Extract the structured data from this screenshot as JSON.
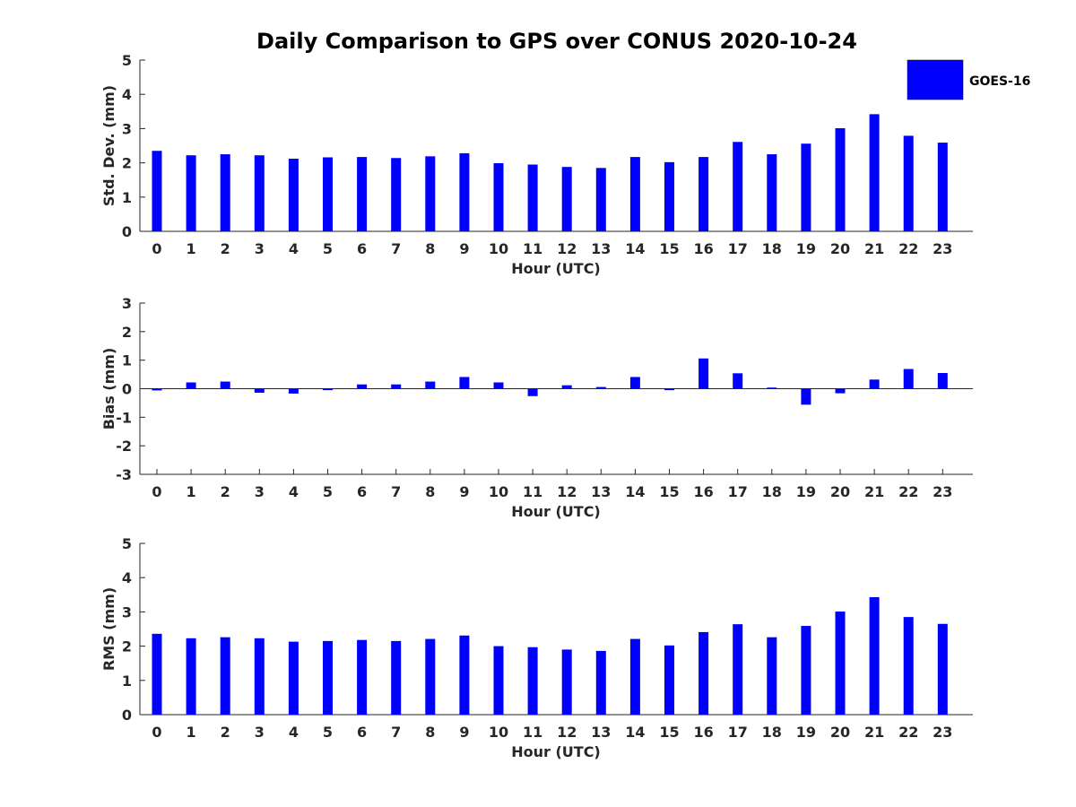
{
  "title": "Daily Comparison to GPS over CONUS 2020-10-24",
  "legend": {
    "label": "GOES-16",
    "color": "#0000ff"
  },
  "chart_data": [
    {
      "type": "bar",
      "title": "Daily Comparison to GPS over CONUS 2020-10-24",
      "xlabel": "Hour (UTC)",
      "ylabel": "Std. Dev. (mm)",
      "ylim": [
        0,
        5
      ],
      "yticks": [
        0,
        1,
        2,
        3,
        4,
        5
      ],
      "categories": [
        "0",
        "1",
        "2",
        "3",
        "4",
        "5",
        "6",
        "7",
        "8",
        "9",
        "10",
        "11",
        "12",
        "13",
        "14",
        "15",
        "16",
        "17",
        "18",
        "19",
        "20",
        "21",
        "22",
        "23"
      ],
      "series": [
        {
          "name": "GOES-16",
          "color": "#0000ff",
          "values": [
            2.35,
            2.22,
            2.25,
            2.22,
            2.12,
            2.16,
            2.17,
            2.14,
            2.19,
            2.28,
            1.99,
            1.95,
            1.88,
            1.85,
            2.17,
            2.02,
            2.17,
            2.61,
            2.25,
            2.56,
            3.01,
            3.42,
            2.79,
            2.59
          ]
        }
      ]
    },
    {
      "type": "bar",
      "xlabel": "Hour (UTC)",
      "ylabel": "Bias (mm)",
      "ylim": [
        -3,
        3
      ],
      "yticks": [
        -3,
        -2,
        -1,
        0,
        1,
        2,
        3
      ],
      "zero_line": true,
      "categories": [
        "0",
        "1",
        "2",
        "3",
        "4",
        "5",
        "6",
        "7",
        "8",
        "9",
        "10",
        "11",
        "12",
        "13",
        "14",
        "15",
        "16",
        "17",
        "18",
        "19",
        "20",
        "21",
        "22",
        "23"
      ],
      "series": [
        {
          "name": "GOES-16",
          "color": "#0000ff",
          "values": [
            -0.06,
            0.22,
            0.25,
            -0.14,
            -0.17,
            -0.05,
            0.15,
            0.15,
            0.25,
            0.41,
            0.22,
            -0.26,
            0.12,
            0.06,
            0.41,
            -0.05,
            1.06,
            0.54,
            0.04,
            -0.56,
            -0.16,
            0.32,
            0.69,
            0.55
          ]
        }
      ]
    },
    {
      "type": "bar",
      "xlabel": "Hour (UTC)",
      "ylabel": "RMS (mm)",
      "ylim": [
        0,
        5
      ],
      "yticks": [
        0,
        1,
        2,
        3,
        4,
        5
      ],
      "categories": [
        "0",
        "1",
        "2",
        "3",
        "4",
        "5",
        "6",
        "7",
        "8",
        "9",
        "10",
        "11",
        "12",
        "13",
        "14",
        "15",
        "16",
        "17",
        "18",
        "19",
        "20",
        "21",
        "22",
        "23"
      ],
      "series": [
        {
          "name": "GOES-16",
          "color": "#0000ff",
          "values": [
            2.36,
            2.23,
            2.26,
            2.23,
            2.13,
            2.15,
            2.18,
            2.15,
            2.21,
            2.31,
            2.0,
            1.97,
            1.9,
            1.86,
            2.21,
            2.02,
            2.41,
            2.64,
            2.26,
            2.59,
            3.01,
            3.43,
            2.85,
            2.65
          ]
        }
      ]
    }
  ]
}
